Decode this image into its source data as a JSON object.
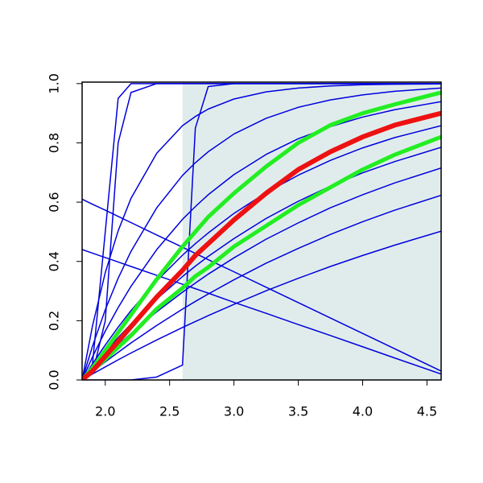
{
  "chart_data": {
    "type": "line",
    "x": [
      1.82,
      1.9,
      2.0,
      2.1,
      2.2,
      2.4,
      2.6,
      2.7,
      2.8,
      3.0,
      3.25,
      3.5,
      3.75,
      4.0,
      4.25,
      4.61
    ],
    "xlim": [
      1.82,
      4.61
    ],
    "ylim": [
      0,
      1.005
    ],
    "xticks": [
      {
        "value": 2,
        "label": "2.0"
      },
      2.5,
      {
        "value": 3,
        "label": "3.0"
      },
      3.5,
      {
        "value": 4,
        "label": "4.0"
      },
      4.5
    ],
    "yticks": [
      {
        "value": 0,
        "label": "0.0"
      },
      0.2,
      0.4,
      0.6,
      0.8,
      {
        "value": 1,
        "label": "1.0"
      }
    ],
    "shaded_region": {
      "xrange": [
        2.6,
        4.61
      ],
      "color": "#e0ecec"
    },
    "series": [
      {
        "color": "#0000dd",
        "line_width": 1.5,
        "values": [
          0,
          0.05,
          0.5,
          0.95,
          1,
          1,
          1,
          1,
          1,
          1,
          1,
          1,
          1,
          1,
          1,
          1
        ]
      },
      {
        "color": "#0000dd",
        "line_width": 1.5,
        "values": [
          0,
          0.02,
          0.2,
          0.8,
          0.97,
          1,
          1,
          1,
          1,
          1,
          1,
          1,
          1,
          1,
          1,
          1
        ]
      },
      {
        "color": "#0000dd",
        "line_width": 1.5,
        "values": [
          0,
          0,
          0,
          0,
          0,
          0.01,
          0.05,
          0.85,
          0.99,
          1,
          1,
          1,
          1,
          1,
          1,
          1
        ]
      },
      {
        "color": "#0000dd",
        "line_width": 1.5,
        "values": [
          0.61,
          0.593,
          0.573,
          0.552,
          0.531,
          0.489,
          0.448,
          0.427,
          0.406,
          0.365,
          0.313,
          0.261,
          0.209,
          0.157,
          0.105,
          0.03
        ]
      },
      {
        "color": "#0000dd",
        "line_width": 1.5,
        "values": [
          0.44,
          0.428,
          0.413,
          0.398,
          0.383,
          0.353,
          0.323,
          0.308,
          0.293,
          0.262,
          0.225,
          0.187,
          0.15,
          0.112,
          0.074,
          0.02
        ]
      },
      {
        "color": "#0000dd",
        "line_width": 1.5,
        "values": [
          0,
          0.02,
          0.044,
          0.068,
          0.091,
          0.135,
          0.177,
          0.197,
          0.217,
          0.255,
          0.301,
          0.343,
          0.383,
          0.42,
          0.455,
          0.502
        ]
      },
      {
        "color": "#0000dd",
        "line_width": 1.5,
        "values": [
          0,
          0.028,
          0.061,
          0.093,
          0.125,
          0.184,
          0.239,
          0.265,
          0.29,
          0.338,
          0.394,
          0.444,
          0.491,
          0.534,
          0.573,
          0.623
        ]
      },
      {
        "color": "#0000dd",
        "line_width": 1.5,
        "values": [
          0,
          0.035,
          0.078,
          0.118,
          0.157,
          0.23,
          0.296,
          0.327,
          0.357,
          0.412,
          0.475,
          0.53,
          0.581,
          0.625,
          0.665,
          0.715
        ]
      },
      {
        "color": "#0000dd",
        "line_width": 1.5,
        "values": [
          0,
          0.043,
          0.094,
          0.143,
          0.189,
          0.273,
          0.349,
          0.384,
          0.417,
          0.477,
          0.545,
          0.603,
          0.654,
          0.699,
          0.737,
          0.785
        ]
      },
      {
        "color": "#0000dd",
        "line_width": 1.5,
        "values": [
          0,
          0.054,
          0.118,
          0.178,
          0.234,
          0.334,
          0.421,
          0.46,
          0.496,
          0.562,
          0.632,
          0.691,
          0.741,
          0.783,
          0.818,
          0.858
        ]
      },
      {
        "color": "#0000dd",
        "line_width": 1.5,
        "values": [
          0,
          0.077,
          0.165,
          0.244,
          0.316,
          0.44,
          0.542,
          0.585,
          0.625,
          0.693,
          0.761,
          0.814,
          0.855,
          0.887,
          0.912,
          0.939
        ]
      },
      {
        "color": "#0000dd",
        "line_width": 1.5,
        "values": [
          0,
          0.113,
          0.237,
          0.343,
          0.434,
          0.581,
          0.69,
          0.733,
          0.77,
          0.83,
          0.883,
          0.92,
          0.945,
          0.962,
          0.974,
          0.985
        ]
      },
      {
        "color": "#0000dd",
        "line_width": 1.5,
        "values": [
          0,
          0.181,
          0.362,
          0.503,
          0.613,
          0.765,
          0.858,
          0.889,
          0.914,
          0.948,
          0.972,
          0.985,
          0.992,
          0.996,
          0.998,
          0.999
        ]
      },
      {
        "color": "#22ee22",
        "line_width": 5,
        "values": [
          0,
          0.04,
          0.1,
          0.16,
          0.22,
          0.34,
          0.45,
          0.5,
          0.55,
          0.63,
          0.72,
          0.8,
          0.86,
          0.9,
          0.93,
          0.97
        ]
      },
      {
        "color": "#22ee22",
        "line_width": 5,
        "values": [
          0,
          0.03,
          0.07,
          0.11,
          0.15,
          0.24,
          0.31,
          0.35,
          0.38,
          0.45,
          0.52,
          0.59,
          0.65,
          0.71,
          0.76,
          0.82
        ]
      },
      {
        "color": "#ee1111",
        "line_width": 6,
        "values": [
          0,
          0.03,
          0.08,
          0.13,
          0.18,
          0.28,
          0.37,
          0.42,
          0.46,
          0.54,
          0.63,
          0.71,
          0.77,
          0.82,
          0.86,
          0.9
        ]
      }
    ]
  }
}
